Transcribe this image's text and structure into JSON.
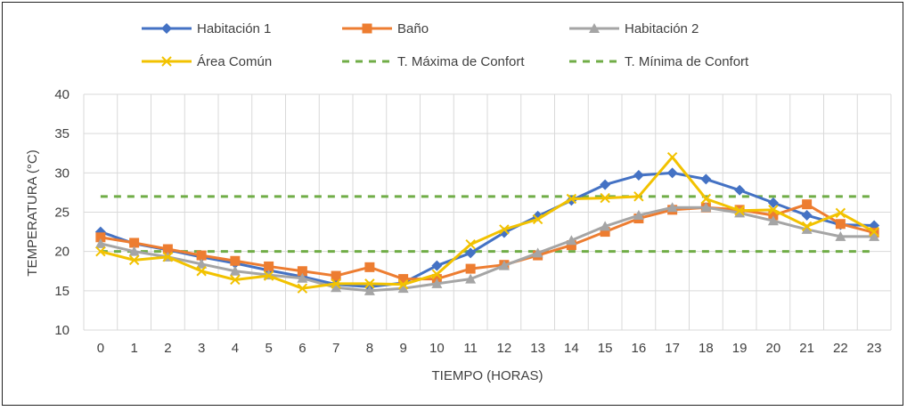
{
  "chart_data": {
    "type": "line",
    "title": "",
    "xlabel": "TIEMPO (HORAS)",
    "ylabel": "TEMPERATURA (°C)",
    "ylim": [
      10,
      40
    ],
    "yticks": [
      10,
      15,
      20,
      25,
      30,
      35,
      40
    ],
    "grid": true,
    "legend_position": "top",
    "categories": [
      "0",
      "1",
      "2",
      "3",
      "4",
      "5",
      "6",
      "7",
      "8",
      "9",
      "10",
      "11",
      "12",
      "13",
      "14",
      "15",
      "16",
      "17",
      "18",
      "19",
      "20",
      "21",
      "22",
      "23"
    ],
    "series": [
      {
        "name": "Habitación 1",
        "color": "#4472C4",
        "marker": "diamond",
        "dash": false,
        "values": [
          22.5,
          21.0,
          20.2,
          19.3,
          18.5,
          17.6,
          16.8,
          15.8,
          15.5,
          16.0,
          18.2,
          19.8,
          22.4,
          24.5,
          26.5,
          28.5,
          29.7,
          30.0,
          29.2,
          27.8,
          26.2,
          24.6,
          23.4,
          23.3
        ]
      },
      {
        "name": "Baño",
        "color": "#ED7D31",
        "marker": "square",
        "dash": false,
        "values": [
          21.8,
          21.1,
          20.3,
          19.5,
          18.8,
          18.1,
          17.5,
          16.9,
          18.0,
          16.5,
          16.5,
          17.8,
          18.3,
          19.5,
          20.8,
          22.5,
          24.2,
          25.3,
          25.6,
          25.3,
          24.6,
          26.0,
          23.5,
          22.4
        ]
      },
      {
        "name": "Habitación 2",
        "color": "#A5A5A5",
        "marker": "triangle",
        "dash": false,
        "values": [
          21.0,
          20.0,
          19.3,
          18.4,
          17.5,
          17.0,
          16.6,
          15.4,
          15.0,
          15.3,
          15.9,
          16.5,
          18.2,
          19.8,
          21.4,
          23.2,
          24.6,
          25.6,
          25.6,
          24.9,
          23.9,
          22.8,
          21.9,
          21.9
        ]
      },
      {
        "name": "Área Común",
        "color": "#F2C200",
        "marker": "x",
        "dash": false,
        "values": [
          20.0,
          18.9,
          19.3,
          17.5,
          16.4,
          16.9,
          15.3,
          15.9,
          15.9,
          15.8,
          17.1,
          20.9,
          22.8,
          24.1,
          26.7,
          26.8,
          27.0,
          32.0,
          26.7,
          25.2,
          25.3,
          23.2,
          24.9,
          22.5
        ]
      },
      {
        "name": "T. Máxima de Confort",
        "color": "#70AD47",
        "marker": "none",
        "dash": true,
        "values": [
          27,
          27,
          27,
          27,
          27,
          27,
          27,
          27,
          27,
          27,
          27,
          27,
          27,
          27,
          27,
          27,
          27,
          27,
          27,
          27,
          27,
          27,
          27,
          27
        ]
      },
      {
        "name": "T. Mínima de Confort",
        "color": "#70AD47",
        "marker": "none",
        "dash": true,
        "values": [
          20,
          20,
          20,
          20,
          20,
          20,
          20,
          20,
          20,
          20,
          20,
          20,
          20,
          20,
          20,
          20,
          20,
          20,
          20,
          20,
          20,
          20,
          20,
          20
        ]
      }
    ]
  }
}
